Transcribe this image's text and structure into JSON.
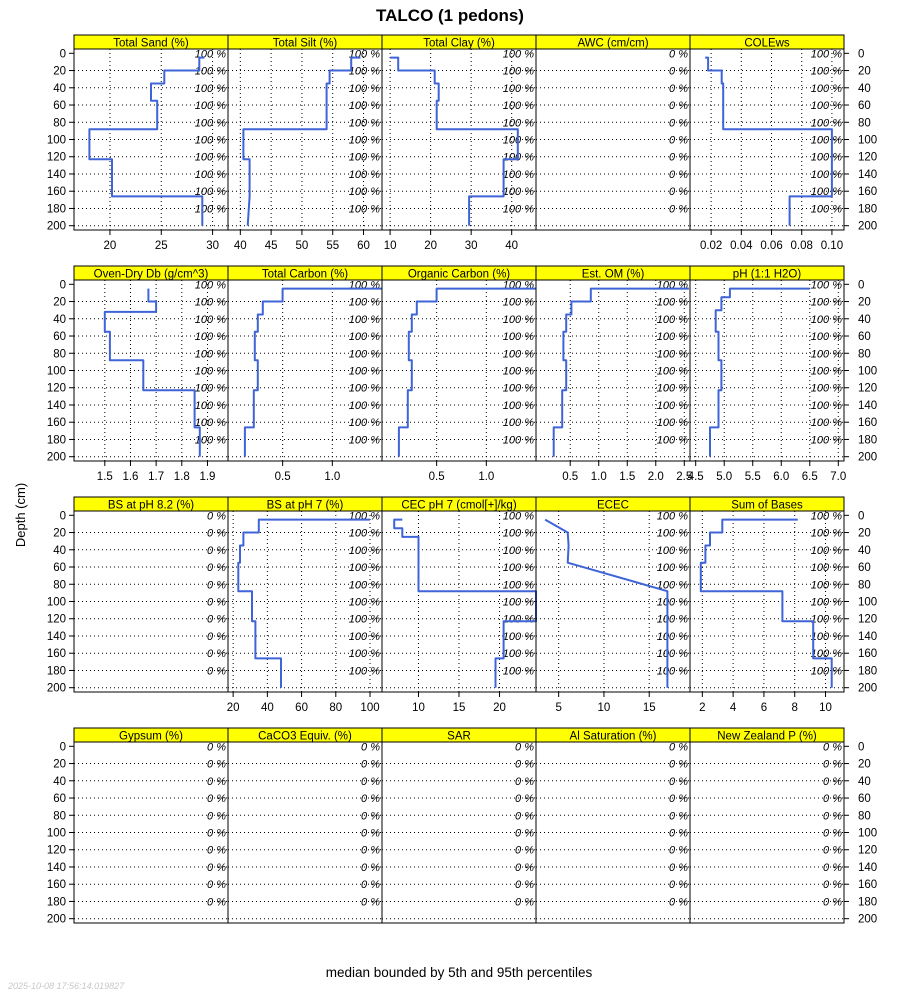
{
  "title": "TALCO (1 pedons)",
  "ylabel": "Depth (cm)",
  "caption": "median bounded by 5th and 95th percentiles",
  "timestamp": "2025-10-08 17:56:14.019827",
  "colors": {
    "strip": "#ffff00",
    "line": "#3f64d8",
    "grid": "#000000"
  },
  "depth_ticks": [
    0,
    20,
    40,
    60,
    80,
    100,
    120,
    140,
    160,
    180,
    200
  ],
  "pct_depths": [
    0,
    20,
    40,
    60,
    80,
    100,
    120,
    140,
    160,
    180
  ],
  "chart_data": {
    "type": "line",
    "ylim": [
      205,
      -5
    ],
    "panels": [
      {
        "name": "Total Sand (%)",
        "xlim": [
          16.5,
          31.5
        ],
        "xticks": [
          20,
          25,
          30
        ],
        "xtick_labels": [
          "20",
          "25",
          "30"
        ],
        "pct": "100 %",
        "depth": [
          5,
          5,
          20,
          20,
          35,
          35,
          55,
          55,
          88,
          88,
          123,
          123,
          166,
          166,
          200
        ],
        "value": [
          29.2,
          28.7,
          28.7,
          25.3,
          25.3,
          24.0,
          24.0,
          24.6,
          24.6,
          18.0,
          18.0,
          20.2,
          20.2,
          29.0,
          29.0
        ]
      },
      {
        "name": "Total Silt (%)",
        "xlim": [
          38,
          63
        ],
        "xticks": [
          40,
          45,
          50,
          55,
          60
        ],
        "xtick_labels": [
          "40",
          "45",
          "50",
          "55",
          "60"
        ],
        "pct": "100 %",
        "depth": [
          5,
          5,
          20,
          20,
          35,
          35,
          88,
          88,
          123,
          123,
          166,
          166,
          200
        ],
        "value": [
          59.5,
          58.0,
          58.0,
          54.5,
          54.5,
          54.0,
          54.0,
          40.5,
          40.5,
          41.5,
          41.5,
          41.5,
          41.2
        ]
      },
      {
        "name": "Total Clay (%)",
        "xlim": [
          8,
          46
        ],
        "xticks": [
          10,
          20,
          30,
          40
        ],
        "xtick_labels": [
          "10",
          "20",
          "30",
          "40"
        ],
        "pct": "100 %",
        "depth": [
          5,
          5,
          20,
          20,
          35,
          35,
          55,
          55,
          88,
          88,
          123,
          123,
          166,
          166,
          200
        ],
        "value": [
          10.0,
          12.0,
          12.0,
          21.0,
          21.0,
          22.0,
          22.0,
          21.5,
          21.5,
          41.5,
          41.5,
          38.0,
          38.0,
          29.5,
          29.5
        ]
      },
      {
        "name": "AWC (cm/cm)",
        "xlim": null,
        "xticks": [],
        "xtick_labels": [],
        "pct": "0 %",
        "depth": [],
        "value": []
      },
      {
        "name": "COLEws",
        "xlim": [
          0.006,
          0.108
        ],
        "xticks": [
          0.02,
          0.04,
          0.06,
          0.08,
          0.1
        ],
        "xtick_labels": [
          "0.02",
          "0.04",
          "0.06",
          "0.08",
          "0.10"
        ],
        "pct": "100 %",
        "depth": [
          5,
          5,
          20,
          20,
          35,
          35,
          88,
          88,
          123,
          123,
          166,
          166,
          200
        ],
        "value": [
          0.016,
          0.018,
          0.018,
          0.027,
          0.027,
          0.028,
          0.028,
          0.1,
          0.1,
          0.1,
          0.1,
          0.072,
          0.072
        ]
      },
      {
        "name": "Oven-Dry Db (g/cm^3)",
        "xlim": [
          1.38,
          1.98
        ],
        "xticks": [
          1.5,
          1.6,
          1.7,
          1.8,
          1.9
        ],
        "xtick_labels": [
          "1.5",
          "1.6",
          "1.7",
          "1.8",
          "1.9"
        ],
        "pct": "100 %",
        "depth": [
          5,
          5,
          20,
          20,
          32,
          32,
          55,
          55,
          88,
          88,
          123,
          123,
          166,
          166,
          200
        ],
        "value": [
          1.67,
          1.67,
          1.67,
          1.7,
          1.7,
          1.5,
          1.5,
          1.52,
          1.52,
          1.65,
          1.65,
          1.85,
          1.85,
          1.87,
          1.87
        ]
      },
      {
        "name": "Total Carbon (%)",
        "xlim": [
          -0.05,
          1.5
        ],
        "xticks": [
          0.5,
          1.0
        ],
        "xtick_labels": [
          "0.5",
          "1.0"
        ],
        "pct": "100 %",
        "depth": [
          5,
          5,
          20,
          20,
          35,
          35,
          55,
          55,
          88,
          88,
          123,
          123,
          166,
          166,
          200
        ],
        "value": [
          1.5,
          0.5,
          0.5,
          0.3,
          0.3,
          0.25,
          0.25,
          0.22,
          0.22,
          0.25,
          0.25,
          0.21,
          0.21,
          0.12,
          0.12
        ]
      },
      {
        "name": "Organic Carbon (%)",
        "xlim": [
          -0.05,
          1.5
        ],
        "xticks": [
          0.5,
          1.0
        ],
        "xtick_labels": [
          "0.5",
          "1.0"
        ],
        "pct": "100 %",
        "depth": [
          5,
          5,
          20,
          20,
          35,
          35,
          55,
          55,
          88,
          88,
          123,
          123,
          166,
          166,
          200
        ],
        "value": [
          1.5,
          0.5,
          0.5,
          0.3,
          0.3,
          0.25,
          0.25,
          0.22,
          0.22,
          0.25,
          0.25,
          0.21,
          0.21,
          0.12,
          0.12
        ]
      },
      {
        "name": "Est. OM (%)",
        "xlim": [
          -0.1,
          2.6
        ],
        "xticks": [
          0.5,
          1.0,
          1.5,
          2.0,
          2.5
        ],
        "xtick_labels": [
          "0.5",
          "1.0",
          "1.5",
          "2.0",
          "2.5"
        ],
        "pct": "100 %",
        "depth": [
          5,
          5,
          20,
          20,
          35,
          35,
          55,
          55,
          88,
          88,
          123,
          123,
          166,
          166,
          200
        ],
        "value": [
          2.58,
          0.86,
          0.86,
          0.52,
          0.52,
          0.43,
          0.43,
          0.38,
          0.38,
          0.43,
          0.43,
          0.36,
          0.36,
          0.21,
          0.21
        ]
      },
      {
        "name": "pH (1:1 H2O)",
        "xlim": [
          4.4,
          7.1
        ],
        "xticks": [
          4.5,
          5.0,
          5.5,
          6.0,
          6.5,
          7.0
        ],
        "xtick_labels": [
          "4.5",
          "5.0",
          "5.5",
          "6.0",
          "6.5",
          "7.0"
        ],
        "pct": "100 %",
        "depth": [
          5,
          5,
          15,
          15,
          30,
          30,
          55,
          55,
          88,
          88,
          123,
          123,
          166,
          166,
          200
        ],
        "value": [
          6.5,
          5.1,
          5.1,
          4.95,
          4.95,
          4.85,
          4.85,
          4.9,
          4.9,
          4.95,
          4.95,
          4.9,
          4.9,
          4.75,
          4.75
        ]
      },
      {
        "name": "BS at pH 8.2 (%)",
        "xlim": null,
        "xticks": [],
        "xtick_labels": [],
        "pct": "0 %",
        "depth": [],
        "value": []
      },
      {
        "name": "BS at pH 7 (%)",
        "xlim": [
          17,
          107
        ],
        "xticks": [
          20,
          40,
          60,
          80,
          100
        ],
        "xtick_labels": [
          "20",
          "40",
          "60",
          "80",
          "100"
        ],
        "pct": "100 %",
        "depth": [
          5,
          5,
          20,
          20,
          35,
          35,
          55,
          55,
          88,
          88,
          123,
          123,
          166,
          166,
          200
        ],
        "value": [
          100,
          35,
          35,
          26,
          26,
          24,
          24,
          23,
          23,
          31,
          31,
          33,
          33,
          48,
          48
        ]
      },
      {
        "name": "CEC pH 7 (cmol[+]/kg)",
        "xlim": [
          5.5,
          24.5
        ],
        "xticks": [
          10,
          15,
          20
        ],
        "xtick_labels": [
          "10",
          "15",
          "20"
        ],
        "pct": "100 %",
        "depth": [
          5,
          5,
          15,
          15,
          25,
          25,
          88,
          88,
          123,
          123,
          166,
          166,
          200
        ],
        "value": [
          8.0,
          7.0,
          7.0,
          8.0,
          8.0,
          10.0,
          10.0,
          24.5,
          24.5,
          20.5,
          20.5,
          19.5,
          19.5
        ]
      },
      {
        "name": "ECEC",
        "xlim": [
          2.5,
          19.5
        ],
        "xticks": [
          5,
          10,
          15
        ],
        "xtick_labels": [
          "5",
          "10",
          "15"
        ],
        "pct": "100 %",
        "depth": [
          5,
          5,
          20,
          20,
          35,
          35,
          55,
          55,
          88,
          88,
          123,
          123,
          166,
          166,
          200
        ],
        "value": [
          3.5,
          3.5,
          6.0,
          6.0,
          6.1,
          6.1,
          6.0,
          6.0,
          17.0,
          17.0,
          17.0,
          17.0,
          17.0,
          17.0,
          17.0
        ]
      },
      {
        "name": "Sum of Bases",
        "xlim": [
          1.2,
          11.2
        ],
        "xticks": [
          2,
          4,
          6,
          8,
          10
        ],
        "xtick_labels": [
          "2",
          "4",
          "6",
          "8",
          "10"
        ],
        "pct": "100 %",
        "depth": [
          5,
          5,
          20,
          20,
          35,
          35,
          55,
          55,
          88,
          88,
          123,
          123,
          166,
          166,
          200
        ],
        "value": [
          8.2,
          3.3,
          3.3,
          2.5,
          2.5,
          2.2,
          2.2,
          1.9,
          1.9,
          7.2,
          7.2,
          9.2,
          9.2,
          10.4,
          10.4
        ]
      },
      {
        "name": "Gypsum (%)",
        "xlim": null,
        "xticks": [],
        "xtick_labels": [],
        "pct": "0 %",
        "depth": [],
        "value": []
      },
      {
        "name": "CaCO3 Equiv. (%)",
        "xlim": null,
        "xticks": [],
        "xtick_labels": [],
        "pct": "0 %",
        "depth": [],
        "value": []
      },
      {
        "name": "SAR",
        "xlim": null,
        "xticks": [],
        "xtick_labels": [],
        "pct": "0 %",
        "depth": [],
        "value": []
      },
      {
        "name": "Al Saturation (%)",
        "xlim": null,
        "xticks": [],
        "xtick_labels": [],
        "pct": "0 %",
        "depth": [],
        "value": []
      },
      {
        "name": "New Zealand P (%)",
        "xlim": null,
        "xticks": [],
        "xtick_labels": [],
        "pct": "0 %",
        "depth": [],
        "value": []
      }
    ]
  }
}
